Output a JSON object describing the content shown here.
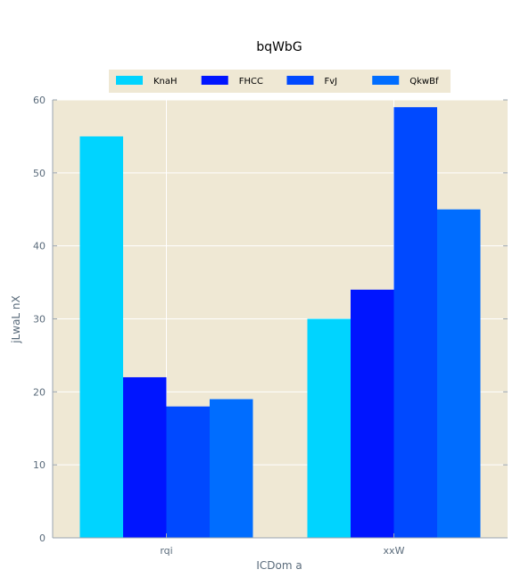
{
  "chart_data": {
    "type": "bar",
    "title": "bqWbG",
    "xlabel": "ICDom a",
    "ylabel": "jLwaL nX",
    "categories": [
      "rqi",
      "xxW"
    ],
    "series": [
      {
        "name": "KnaH",
        "values": [
          55,
          30
        ],
        "color": "#00d4ff"
      },
      {
        "name": "FHCC",
        "values": [
          22,
          34
        ],
        "color": "#0015ff"
      },
      {
        "name": "FvJ",
        "values": [
          18,
          59
        ],
        "color": "#0049ff"
      },
      {
        "name": "QkwBf",
        "values": [
          19,
          45
        ],
        "color": "#006dff"
      }
    ],
    "ylim": [
      0,
      60
    ],
    "yticks": [
      0,
      10,
      20,
      30,
      40,
      50,
      60
    ],
    "grid": true,
    "legend_position": "top-center",
    "plot_background": "#efe8d4"
  }
}
